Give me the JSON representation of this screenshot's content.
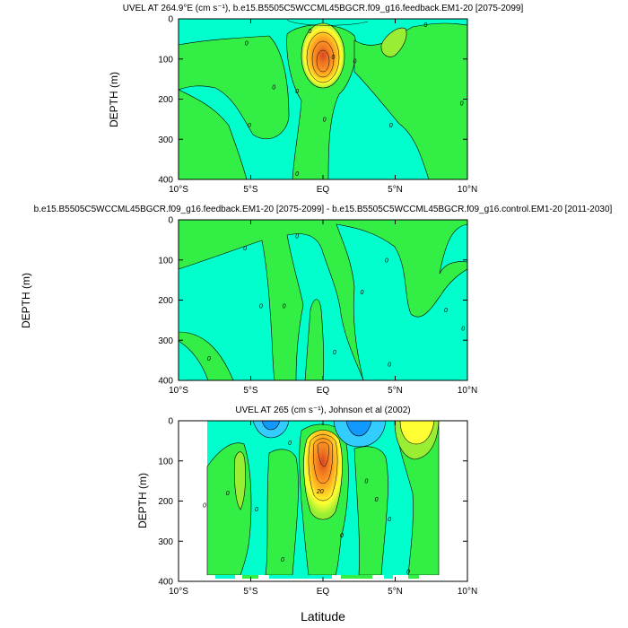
{
  "colors": {
    "cyan": "#00ffcc",
    "cyan_light": "#1affe0",
    "green_lt": "#33ff66",
    "green": "#33ee44",
    "green_dk": "#55dd22",
    "lime": "#99ee33",
    "yellow": "#ffff33",
    "gold": "#ffcc22",
    "orange": "#ff9922",
    "orange_dk": "#ee7722",
    "red": "#dd4422",
    "blue_lt": "#33ccff",
    "blue": "#1199ff",
    "blue_dk": "#0066ee",
    "white": "#ffffff",
    "black": "#000000"
  },
  "chart_data": [
    {
      "type": "heatmap",
      "id": "top",
      "title": "UVEL AT 264.9°E (cm s⁻¹), b.e15.B5505C5WCCML45BGCR.f09_g16.feedback.EM1-20 [2075-2099]",
      "xlabel": "",
      "ylabel": "DEPTH (m)",
      "xlim": [
        -10,
        10
      ],
      "ylim": [
        400,
        0
      ],
      "x_ticks": [
        -10,
        -5,
        0,
        5,
        10
      ],
      "x_tick_labels": [
        "10°S",
        "5°S",
        "EQ",
        "5°N",
        "10°N"
      ],
      "y_ticks": [
        0,
        100,
        200,
        300,
        400
      ],
      "y_tick_labels": [
        "0",
        "100",
        "200",
        "300",
        "400"
      ],
      "contour_labels": [
        {
          "text": "0",
          "lat": -5.3,
          "depth": 60
        },
        {
          "text": "0",
          "lat": -3.4,
          "depth": 170
        },
        {
          "text": "0",
          "lat": -5.1,
          "depth": 265
        },
        {
          "text": "0",
          "lat": -1.8,
          "depth": 180
        },
        {
          "text": "0",
          "lat": -0.9,
          "depth": 30
        },
        {
          "text": "0",
          "lat": 0.7,
          "depth": 95
        },
        {
          "text": "0",
          "lat": 2.2,
          "depth": 105
        },
        {
          "text": "0",
          "lat": 0.1,
          "depth": 250
        },
        {
          "text": "0",
          "lat": -1.8,
          "depth": 385
        },
        {
          "text": "0",
          "lat": 4.7,
          "depth": 265
        },
        {
          "text": "0",
          "lat": 9.6,
          "depth": 210
        },
        {
          "text": "0",
          "lat": 7.1,
          "depth": 15
        }
      ]
    },
    {
      "type": "heatmap",
      "id": "middle",
      "title": "b.e15.B5505C5WCCML45BGCR.f09_g16.feedback.EM1-20 [2075-2099] - b.e15.B5505C5WCCML45BGCR.f09_g16.control.EM1-20 [2011-2030]",
      "xlabel": "",
      "ylabel": "DEPTH (m)",
      "xlim": [
        -10,
        10
      ],
      "ylim": [
        400,
        0
      ],
      "x_ticks": [
        -10,
        -5,
        0,
        5,
        10
      ],
      "x_tick_labels": [
        "10°S",
        "5°S",
        "EQ",
        "5°N",
        "10°N"
      ],
      "y_ticks": [
        0,
        100,
        200,
        300,
        400
      ],
      "y_tick_labels": [
        "0",
        "100",
        "200",
        "300",
        "400"
      ],
      "contour_labels": [
        {
          "text": "0",
          "lat": -5.4,
          "depth": 70
        },
        {
          "text": "0",
          "lat": -4.3,
          "depth": 215
        },
        {
          "text": "0",
          "lat": -2.7,
          "depth": 215
        },
        {
          "text": "0",
          "lat": -1.8,
          "depth": 40
        },
        {
          "text": "0",
          "lat": 0.8,
          "depth": 330
        },
        {
          "text": "0",
          "lat": 2.7,
          "depth": 180
        },
        {
          "text": "0",
          "lat": 4.4,
          "depth": 100
        },
        {
          "text": "0",
          "lat": 8.5,
          "depth": 225
        },
        {
          "text": "0",
          "lat": 9.7,
          "depth": 270
        },
        {
          "text": "0",
          "lat": -7.9,
          "depth": 345
        },
        {
          "text": "0",
          "lat": 4.6,
          "depth": 360
        }
      ]
    },
    {
      "type": "heatmap",
      "id": "bottom",
      "title": "UVEL AT 265 (cm s⁻¹), Johnson et al (2002)",
      "xlabel": "Latitude",
      "ylabel": "DEPTH (m)",
      "xlim": [
        -10,
        10
      ],
      "ylim": [
        400,
        0
      ],
      "x_ticks": [
        -10,
        -5,
        0,
        5,
        10
      ],
      "x_tick_labels": [
        "10°S",
        "5°S",
        "EQ",
        "5°N",
        "10°N"
      ],
      "y_ticks": [
        0,
        100,
        200,
        300,
        400
      ],
      "y_tick_labels": [
        "0",
        "100",
        "200",
        "300",
        "400"
      ],
      "contour_labels": [
        {
          "text": "20",
          "lat": -0.2,
          "depth": 175
        },
        {
          "text": "0",
          "lat": -8.2,
          "depth": 210
        },
        {
          "text": "0",
          "lat": -6.6,
          "depth": 180
        },
        {
          "text": "0",
          "lat": -4.6,
          "depth": 220
        },
        {
          "text": "0",
          "lat": -2.3,
          "depth": 55
        },
        {
          "text": "0",
          "lat": -2.8,
          "depth": 345
        },
        {
          "text": "0",
          "lat": 3.0,
          "depth": 150
        },
        {
          "text": "0",
          "lat": 3.7,
          "depth": 195
        },
        {
          "text": "0",
          "lat": 4.6,
          "depth": 245
        },
        {
          "text": "0",
          "lat": 1.3,
          "depth": 285
        },
        {
          "text": "0",
          "lat": 5.9,
          "depth": 375
        }
      ]
    }
  ]
}
